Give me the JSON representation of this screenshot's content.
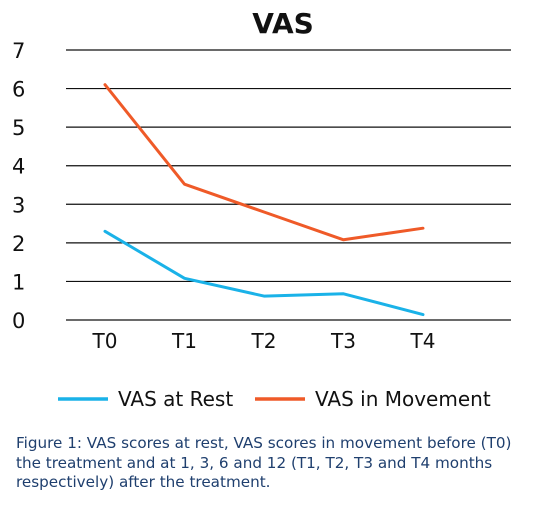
{
  "chart_data": {
    "type": "line",
    "title": "VAS",
    "categories": [
      "T0",
      "T1",
      "T2",
      "T3",
      "T4"
    ],
    "ylim": [
      0,
      7
    ],
    "yticks": [
      0,
      1,
      2,
      3,
      4,
      5,
      6,
      7
    ],
    "grid": true,
    "legend": "bottom",
    "series": [
      {
        "name": "VAS at Rest",
        "color": "#1ab2e8",
        "values": [
          2.3,
          1.08,
          0.62,
          0.68,
          0.14
        ]
      },
      {
        "name": "VAS in Movement",
        "color": "#ef5a28",
        "values": [
          6.1,
          3.52,
          2.8,
          2.08,
          2.38
        ]
      }
    ]
  },
  "caption": "Figure 1: VAS scores at rest, VAS scores in movement before (T0) the treatment and at 1, 3, 6 and 12 (T1, T2, T3 and T4 months respectively) after the treatment."
}
